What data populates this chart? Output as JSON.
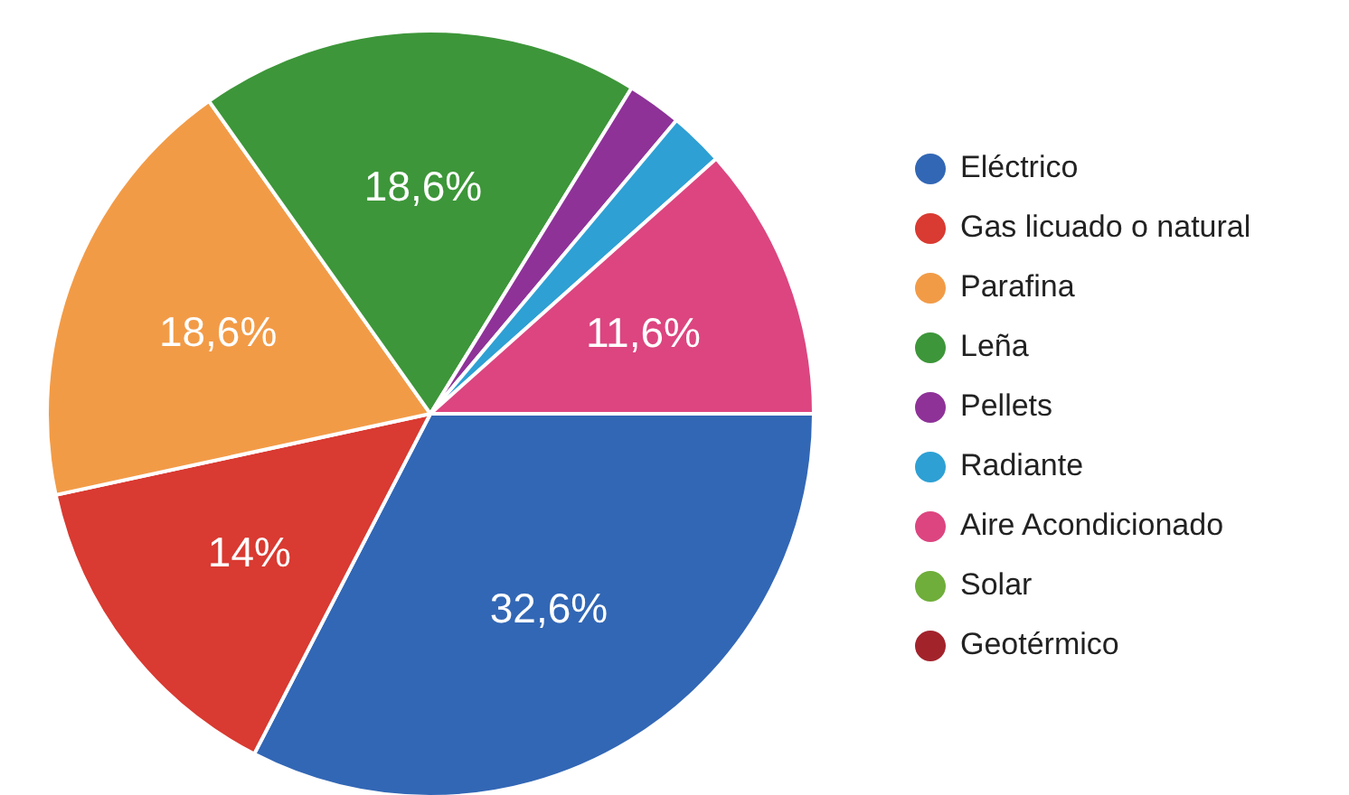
{
  "chart_data": {
    "type": "pie",
    "categories": [
      "Eléctrico",
      "Gas licuado o natural",
      "Parafina",
      "Leña",
      "Pellets",
      "Radiante",
      "Aire Acondicionado",
      "Solar",
      "Geotérmico"
    ],
    "values": [
      32.6,
      14,
      18.6,
      18.6,
      2.3,
      2.3,
      11.6,
      0,
      0
    ],
    "colors": [
      "#3267b5",
      "#d93a31",
      "#f29b47",
      "#3d9639",
      "#8e3298",
      "#2ea0d4",
      "#dc4580",
      "#6fae3a",
      "#a3232b"
    ],
    "value_labels": [
      "32,6%",
      "14%",
      "18,6%",
      "18,6%",
      null,
      null,
      "11,6%",
      null,
      null
    ],
    "legend": "right"
  }
}
